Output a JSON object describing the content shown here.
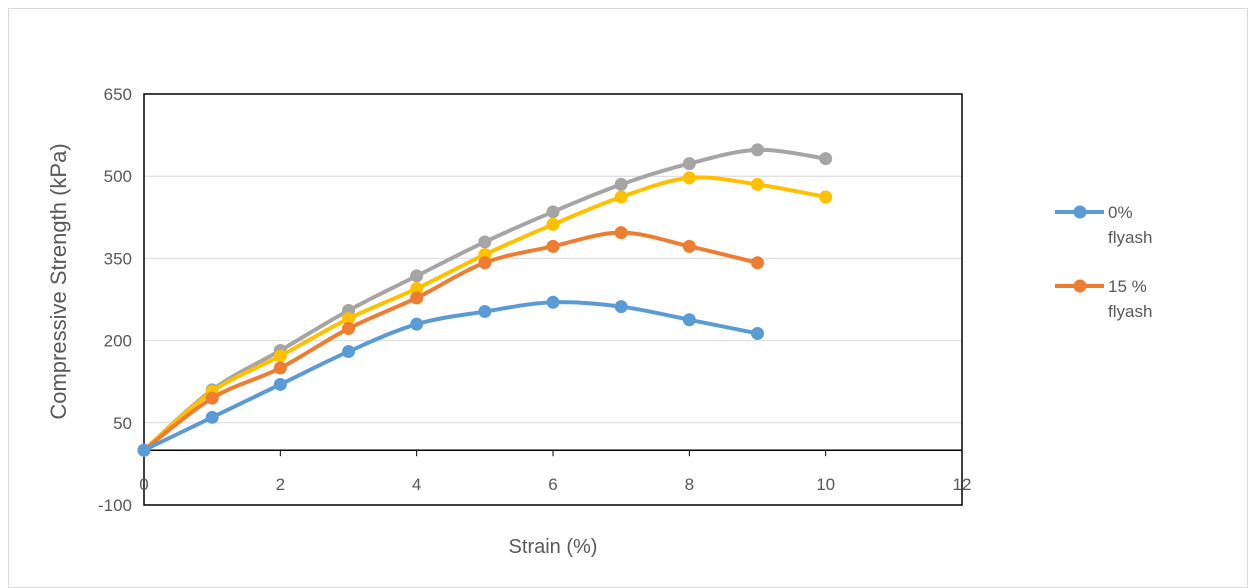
{
  "chart_data": {
    "type": "line",
    "title": "",
    "xlabel": "Strain (%)",
    "ylabel": "Compressive Strength (kPa)",
    "xlim": [
      0,
      12
    ],
    "ylim": [
      -100,
      650
    ],
    "x_ticks": [
      0,
      2,
      4,
      6,
      8,
      10,
      12
    ],
    "y_ticks": [
      -100,
      50,
      200,
      350,
      500,
      650
    ],
    "grid": "horizontal",
    "legend_position": "right",
    "series": [
      {
        "name": "0% flyash",
        "color": "#5b9bd5",
        "x": [
          0,
          1,
          2,
          3,
          4,
          5,
          6,
          7,
          8,
          9
        ],
        "values": [
          0,
          60,
          120,
          180,
          230,
          253,
          270,
          262,
          238,
          213
        ]
      },
      {
        "name": "15 % flyash",
        "color": "#ed7d31",
        "x": [
          0,
          1,
          2,
          3,
          4,
          5,
          6,
          7,
          8,
          9
        ],
        "values": [
          0,
          95,
          150,
          222,
          278,
          342,
          372,
          397,
          372,
          342
        ]
      },
      {
        "color": "#a5a5a5",
        "x": [
          0,
          1,
          2,
          3,
          4,
          5,
          6,
          7,
          8,
          9,
          10
        ],
        "values": [
          0,
          110,
          182,
          255,
          318,
          380,
          435,
          485,
          523,
          548,
          532
        ]
      },
      {
        "color": "#ffc000",
        "x": [
          0,
          1,
          2,
          3,
          4,
          5,
          6,
          7,
          8,
          9,
          10
        ],
        "values": [
          0,
          107,
          172,
          240,
          295,
          357,
          412,
          462,
          497,
          485,
          462
        ]
      }
    ]
  }
}
